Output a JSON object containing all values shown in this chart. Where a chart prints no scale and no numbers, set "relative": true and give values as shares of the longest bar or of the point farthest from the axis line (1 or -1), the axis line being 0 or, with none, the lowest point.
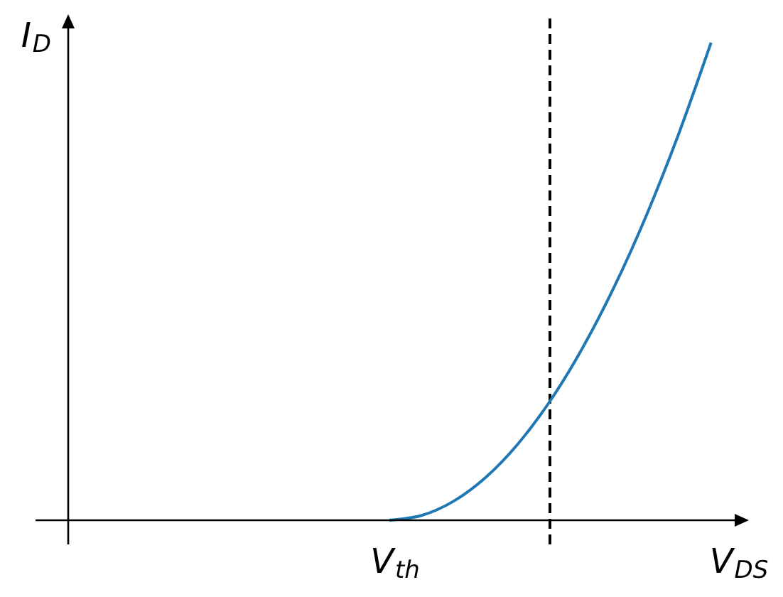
{
  "chart_data": {
    "type": "line",
    "relative": true,
    "xlabel": "V$_{DS}$",
    "ylabel": "I$_{D}$",
    "categories": [
      null,
      null,
      null,
      null,
      null,
      null,
      null,
      null,
      null,
      null,
      null,
      null,
      null,
      null,
      null,
      null,
      null,
      null,
      null,
      null,
      null,
      null,
      null
    ],
    "series": [
      {
        "color": "#1f77b4",
        "values": [
          null,
          null,
          null,
          null,
          null,
          null,
          null,
          null,
          null,
          null,
          null,
          0,
          0.01,
          0.04,
          0.09,
          0.16,
          0.25,
          0.36,
          0.49,
          0.64,
          0.81,
          1,
          null
        ]
      }
    ],
    "annotations": [
      {
        "text": "V$_{th}$",
        "y": 0
      }
    ]
  }
}
